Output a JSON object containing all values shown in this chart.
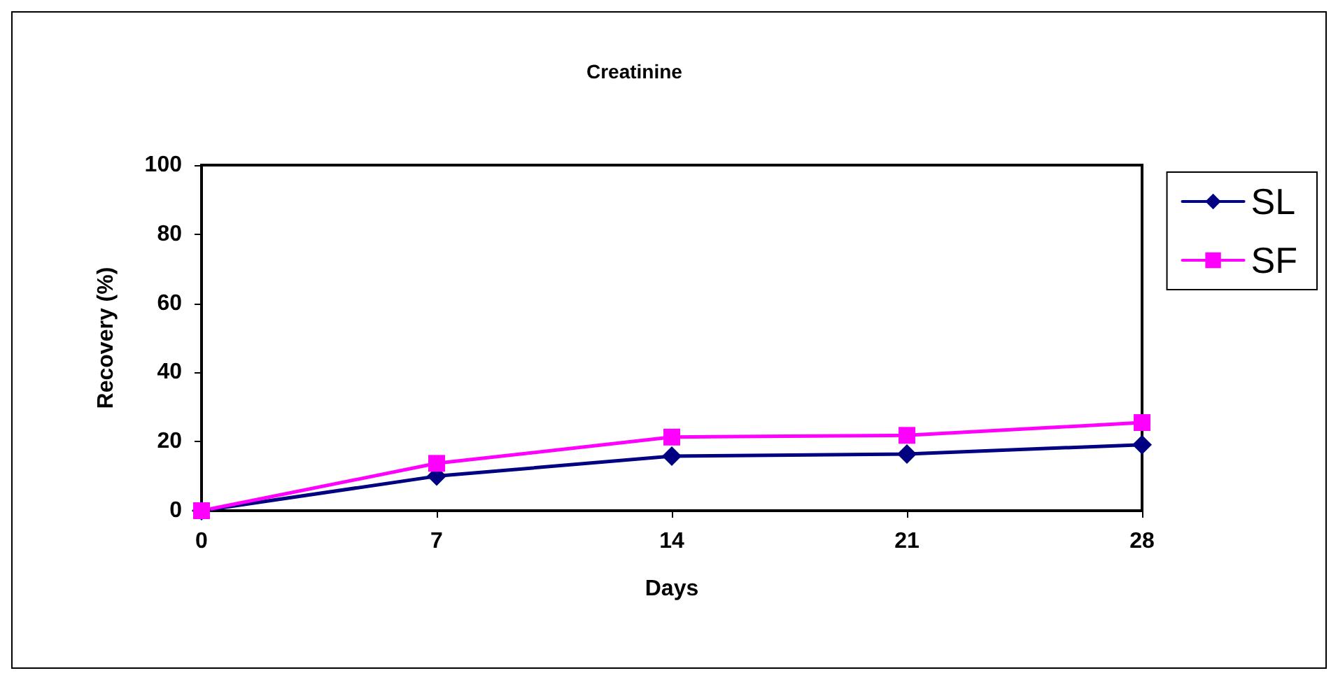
{
  "chart_data": {
    "type": "line",
    "title": "Creatinine",
    "xlabel": "Days",
    "ylabel": "Recovery (%)",
    "categories": [
      "0",
      "7",
      "14",
      "21",
      "28"
    ],
    "series": [
      {
        "name": "SL",
        "color": "#000080",
        "marker": "diamond",
        "values": [
          0,
          10.0,
          15.8,
          16.4,
          19.1
        ]
      },
      {
        "name": "SF",
        "color": "#ff00ff",
        "marker": "square",
        "values": [
          0,
          13.7,
          21.3,
          21.8,
          25.5
        ]
      }
    ],
    "ylim": [
      0,
      100
    ],
    "yticks": [
      0,
      20,
      40,
      60,
      80,
      100
    ],
    "grid": false,
    "legend": "top right",
    "line_style": "solid"
  }
}
